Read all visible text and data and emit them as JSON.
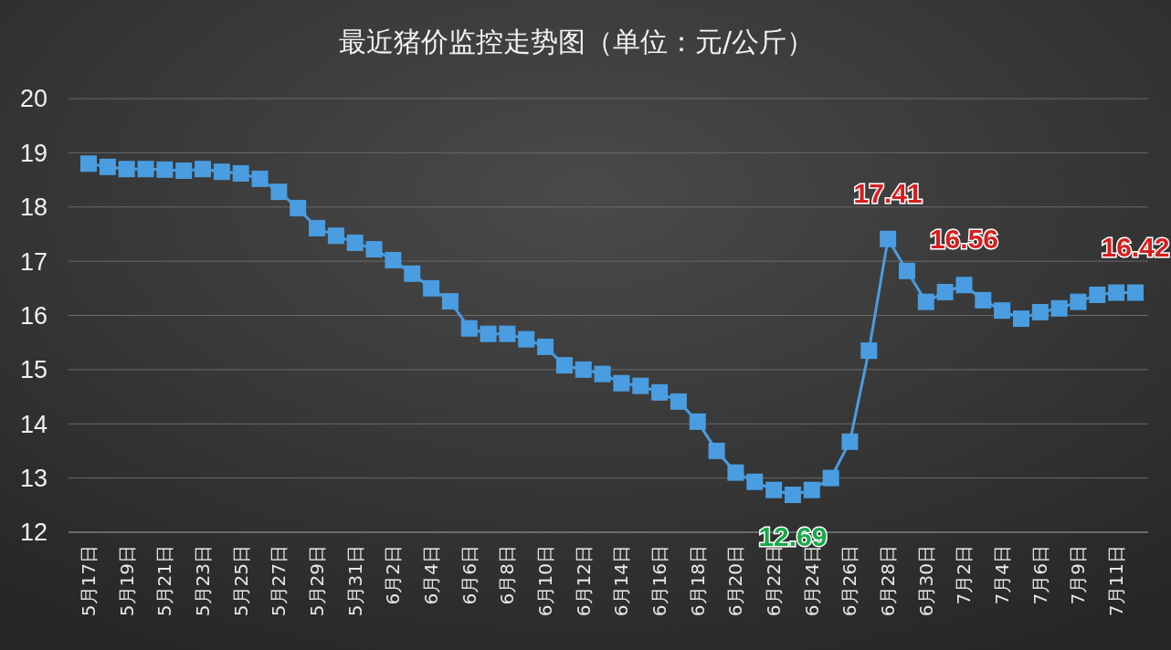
{
  "chart_data": {
    "type": "line",
    "title": "最近猪价监控走势图（单位：元/公斤）",
    "categories": [
      "5月17日",
      null,
      "5月19日",
      null,
      "5月21日",
      null,
      "5月23日",
      null,
      "5月25日",
      null,
      "5月27日",
      null,
      "5月29日",
      null,
      "5月31日",
      null,
      "6月2日",
      null,
      "6月4日",
      null,
      "6月6日",
      null,
      "6月8日",
      null,
      "6月10日",
      null,
      "6月12日",
      null,
      "6月14日",
      null,
      "6月16日",
      null,
      "6月18日",
      null,
      "6月20日",
      null,
      "6月22日",
      null,
      "6月24日",
      null,
      "6月26日",
      null,
      "6月28日",
      null,
      "6月30日",
      null,
      "7月2日",
      null,
      "7月4日",
      null,
      "7月6日",
      null,
      "7月9日",
      null,
      "7月11日",
      null
    ],
    "series": [
      {
        "color": "#4a9de0",
        "values": [
          18.8,
          18.74,
          18.7,
          18.7,
          18.69,
          18.67,
          18.7,
          18.65,
          18.62,
          18.52,
          18.28,
          17.98,
          17.61,
          17.47,
          17.34,
          17.22,
          17.02,
          16.77,
          16.5,
          16.26,
          15.76,
          15.66,
          15.66,
          15.56,
          15.42,
          15.08,
          15.0,
          14.92,
          14.75,
          14.7,
          14.58,
          14.41,
          14.04,
          13.5,
          13.1,
          12.93,
          12.78,
          12.69,
          12.78,
          13.0,
          13.67,
          15.35,
          17.41,
          16.82,
          16.25,
          16.43,
          16.56,
          16.28,
          16.09,
          15.94,
          16.06,
          16.13,
          16.25,
          16.38,
          16.42,
          16.42
        ],
        "value_labels": [
          null,
          null,
          null,
          null,
          null,
          null,
          null,
          null,
          null,
          null,
          null,
          null,
          null,
          null,
          null,
          null,
          null,
          null,
          null,
          null,
          null,
          null,
          null,
          null,
          null,
          null,
          null,
          null,
          null,
          null,
          null,
          null,
          null,
          null,
          null,
          null,
          null,
          "12.69",
          null,
          null,
          null,
          null,
          "17.41",
          null,
          null,
          null,
          "16.56",
          null,
          null,
          null,
          null,
          null,
          null,
          null,
          null,
          "16.42"
        ]
      }
    ],
    "ylim": [
      12,
      20
    ],
    "yticks": [
      12,
      13,
      14,
      15,
      16,
      17,
      18,
      19,
      20
    ],
    "grid": "y",
    "marker": "square",
    "line_style": "solid"
  }
}
